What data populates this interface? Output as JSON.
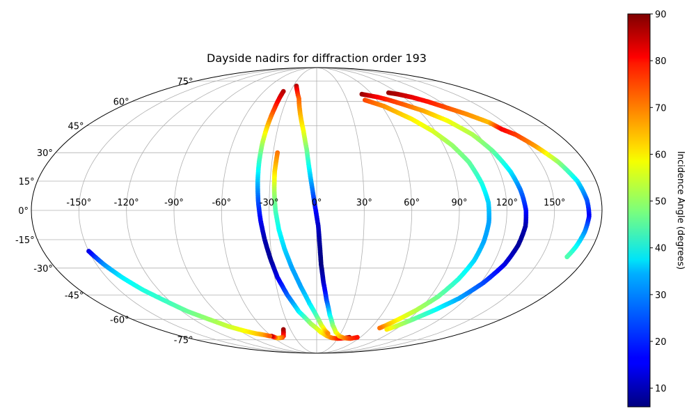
{
  "chart_data": {
    "type": "scatter",
    "projection": "mollweide",
    "title": "Dayside nadirs for diffraction order 193",
    "xlabel": "",
    "ylabel": "",
    "x_ticks": [
      "-150°",
      "-120°",
      "-90°",
      "-60°",
      "-30°",
      "0°",
      "30°",
      "60°",
      "90°",
      "120°",
      "150°"
    ],
    "y_ticks": [
      "-75°",
      "-60°",
      "-45°",
      "-30°",
      "-15°",
      "0°",
      "15°",
      "30°",
      "45°",
      "60°",
      "75°"
    ],
    "x_tick_values": [
      -150,
      -120,
      -90,
      -60,
      -30,
      0,
      30,
      60,
      90,
      120,
      150
    ],
    "y_tick_values": [
      -75,
      -60,
      -45,
      -30,
      -15,
      0,
      15,
      30,
      45,
      60,
      75
    ],
    "grid": true,
    "colorbar": {
      "label": "Incidence Angle (degrees)",
      "colormap": "jet",
      "range": [
        6,
        90
      ],
      "ticks": [
        "10",
        "20",
        "30",
        "40",
        "50",
        "60",
        "70",
        "80",
        "90"
      ],
      "tick_values": [
        10,
        20,
        30,
        40,
        50,
        60,
        70,
        80,
        90
      ]
    },
    "tracks": [
      {
        "points": [
          [
            -38,
            67,
            86
          ],
          [
            -38,
            62,
            82
          ],
          [
            -38,
            55,
            75
          ],
          [
            -38.5,
            45,
            64
          ],
          [
            -38.8,
            35,
            52
          ],
          [
            -38.6,
            25,
            42
          ],
          [
            -38,
            15,
            33
          ],
          [
            -37,
            5,
            24
          ],
          [
            -35.5,
            -5,
            16
          ],
          [
            -33.5,
            -15,
            10
          ],
          [
            -31,
            -25,
            8
          ],
          [
            -28,
            -35,
            14
          ],
          [
            -23,
            -45,
            24
          ],
          [
            -16,
            -55,
            36
          ],
          [
            -6,
            -63,
            50
          ],
          [
            5,
            -69,
            58
          ],
          [
            14,
            -72,
            64
          ],
          [
            22,
            -73.5,
            70
          ],
          [
            30,
            -74,
            76
          ],
          [
            40,
            -73.5,
            82
          ],
          [
            45,
            -73,
            86
          ]
        ]
      },
      {
        "points": [
          [
            -26,
            71,
            86
          ],
          [
            -23,
            68,
            80
          ],
          [
            -18,
            62,
            72
          ],
          [
            -14,
            52,
            65
          ],
          [
            -10,
            42,
            58
          ],
          [
            -7,
            32,
            48
          ],
          [
            -5,
            22,
            38
          ],
          [
            -3,
            12,
            28
          ],
          [
            -1,
            2,
            18
          ],
          [
            1,
            -8,
            12
          ],
          [
            2,
            -18,
            8
          ],
          [
            3,
            -28,
            6
          ],
          [
            5,
            -38,
            12
          ],
          [
            8,
            -48,
            22
          ],
          [
            12,
            -57,
            36
          ],
          [
            17,
            -64,
            48
          ],
          [
            23,
            -69,
            56
          ],
          [
            30,
            -72,
            62
          ],
          [
            38,
            -73.5,
            68
          ],
          [
            48,
            -74,
            74
          ],
          [
            56,
            -73,
            78
          ]
        ]
      },
      {
        "points": [
          [
            -27,
            30,
            70
          ],
          [
            -27.5,
            20,
            62
          ],
          [
            -27,
            10,
            52
          ],
          [
            -26,
            0,
            44
          ],
          [
            -24,
            -10,
            38
          ],
          [
            -21,
            -20,
            34
          ],
          [
            -17,
            -30,
            30
          ],
          [
            -12,
            -40,
            30
          ],
          [
            -6,
            -50,
            35
          ],
          [
            0,
            -58,
            44
          ],
          [
            5,
            -64,
            54
          ],
          [
            10,
            -68,
            62
          ],
          [
            14,
            -70,
            68
          ]
        ]
      },
      {
        "points": [
          [
            -38,
            -67,
            88
          ],
          [
            -40,
            -69,
            85
          ],
          [
            -44,
            -72,
            78
          ],
          [
            -47,
            -73,
            73
          ],
          [
            -52,
            -73.5,
            68
          ],
          [
            -56,
            -73.5,
            64
          ],
          [
            -60,
            -72,
            85
          ]
        ]
      },
      {
        "points": [
          [
            -150,
            -21,
            14
          ],
          [
            -145,
            -28,
            28
          ],
          [
            -139,
            -35,
            36
          ],
          [
            -132,
            -42,
            40
          ],
          [
            -124,
            -48,
            42
          ],
          [
            -115,
            -55,
            46
          ],
          [
            -105,
            -60,
            50
          ],
          [
            -95,
            -65,
            54
          ],
          [
            -85,
            -68,
            58
          ],
          [
            -76,
            -70,
            62
          ],
          [
            -68,
            -71,
            66
          ],
          [
            -62,
            -72,
            72
          ]
        ]
      },
      {
        "points": [
          [
            48,
            61,
            74
          ],
          [
            55,
            59,
            71
          ],
          [
            62,
            57,
            68
          ],
          [
            70,
            53,
            64
          ],
          [
            78,
            49,
            60
          ],
          [
            88,
            42,
            56
          ],
          [
            96,
            34,
            50
          ],
          [
            102,
            25,
            46
          ],
          [
            106,
            14,
            40
          ],
          [
            108.5,
            4,
            34
          ],
          [
            109,
            -6,
            30
          ],
          [
            108,
            -16,
            30
          ],
          [
            106,
            -26,
            34
          ],
          [
            102,
            -36,
            40
          ],
          [
            96,
            -46,
            46
          ],
          [
            88,
            -54,
            52
          ],
          [
            80,
            -60,
            58
          ],
          [
            74,
            -64,
            64
          ],
          [
            70,
            -66,
            70
          ]
        ]
      },
      {
        "points": [
          [
            49,
            65,
            88
          ],
          [
            56,
            64,
            84
          ],
          [
            63,
            63,
            80
          ],
          [
            72,
            61,
            76
          ],
          [
            82,
            58,
            72
          ],
          [
            94,
            54,
            66
          ],
          [
            106,
            48,
            58
          ],
          [
            116,
            40,
            52
          ],
          [
            122,
            31,
            46
          ],
          [
            127,
            20,
            36
          ],
          [
            130,
            10,
            26
          ],
          [
            132,
            0,
            18
          ],
          [
            132.5,
            -8,
            10
          ],
          [
            131,
            -18,
            8
          ],
          [
            128,
            -28,
            14
          ],
          [
            122,
            -38,
            22
          ],
          [
            114,
            -47,
            30
          ],
          [
            104,
            -54,
            38
          ],
          [
            94,
            -60,
            46
          ],
          [
            85,
            -65,
            54
          ],
          [
            80,
            -67,
            60
          ]
        ]
      },
      {
        "points": [
          [
            80,
            66,
            88
          ],
          [
            88,
            65,
            86
          ],
          [
            98,
            63,
            82
          ],
          [
            108,
            60,
            78
          ],
          [
            118,
            56,
            73
          ],
          [
            128,
            52,
            68
          ],
          [
            138,
            47,
            64
          ],
          [
            142,
            43,
            80
          ],
          [
            148,
            40,
            75
          ],
          [
            155,
            33,
            66
          ],
          [
            162,
            25,
            50
          ],
          [
            168,
            15,
            36
          ],
          [
            171,
            5,
            24
          ],
          [
            172,
            -3,
            16
          ],
          [
            171,
            -11,
            28
          ],
          [
            169,
            -19,
            38
          ],
          [
            167,
            -24,
            44
          ]
        ]
      }
    ]
  }
}
